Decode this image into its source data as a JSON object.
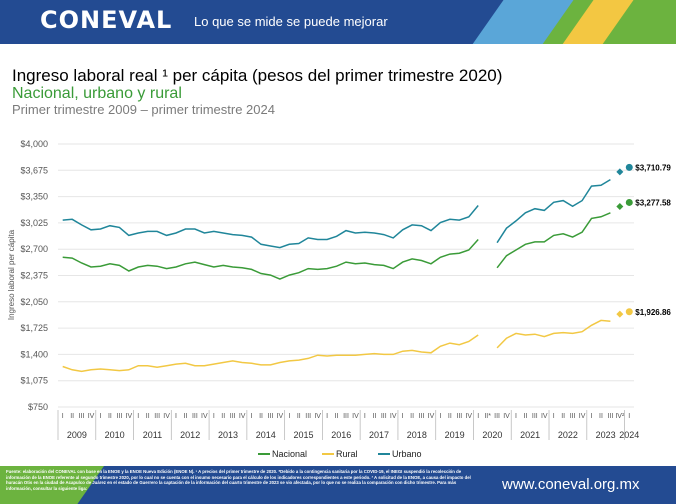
{
  "header": {
    "logo_text": "CONEVAL",
    "slogan": "Lo que se mide se puede mejorar"
  },
  "footer": {
    "source_note": "Fuente: elaboración del CONEVAL con base en la ENOE y la ENOE Nueva Edición (ENOE N). ¹ A precios del primer trimestre de 2020. *Debido a la contingencia sanitaria por la COVID-19, el INEGI suspendió la recolección de información de la ENOE referente al segundo trimestre 2020, por lo cual no se cuenta con el insumo necesario para el cálculo de los indicadores correspondientes a este periodo. ² A solicitud de la ENOE, a causa del impacto del huracán Otis en la ciudad de Acapulco de Juárez en el estado de Guerrero la captación de la información del cuarto trimestre de 2023 se vio afectada, por lo que no se realiza la comparación con dicho trimestre. Para más información, consultar la siguiente liga:",
    "website": "www.coneval.org.mx"
  },
  "colors": {
    "nacional": "#3a9b38",
    "rural": "#f2c844",
    "urbano": "#20869a",
    "header_blue": "#234b92",
    "accent_green": "#6cb33f"
  },
  "chart_data": {
    "type": "line",
    "title": "Ingreso laboral real ¹ per cápita (pesos del primer trimestre 2020)",
    "subtitle": "Nacional, urbano y rural",
    "period": "Primer trimestre 2009 – primer trimestre 2024",
    "ylabel": "Ingreso laboral per cápita",
    "ylim": [
      750,
      4000
    ],
    "yticks": [
      750,
      1075,
      1400,
      1725,
      2050,
      2375,
      2700,
      3025,
      3350,
      3675,
      4000
    ],
    "ytick_labels": [
      "$750",
      "$1,075",
      "$1,400",
      "$1,725",
      "$2,050",
      "$2,375",
      "$2,700",
      "$3,025",
      "$3,350",
      "$3,675",
      "$4,000"
    ],
    "quarter_labels": [
      "I",
      "II",
      "III",
      "IV",
      "I",
      "II",
      "III",
      "IV",
      "I",
      "II",
      "III",
      "IV",
      "I",
      "II",
      "III",
      "IV",
      "I",
      "II",
      "III",
      "IV",
      "I",
      "II",
      "III",
      "IV",
      "I",
      "II",
      "III",
      "IV",
      "I",
      "II",
      "III",
      "IV",
      "I",
      "II",
      "III",
      "IV",
      "I",
      "II",
      "III",
      "IV",
      "I",
      "II",
      "III",
      "IV",
      "I",
      "II*",
      "III",
      "IV",
      "I",
      "II",
      "III",
      "IV",
      "I",
      "II",
      "III",
      "IV",
      "I",
      "II",
      "III",
      "IV²",
      "I"
    ],
    "years": [
      "2009",
      "2010",
      "2011",
      "2012",
      "2013",
      "2014",
      "2015",
      "2016",
      "2017",
      "2018",
      "2019",
      "2020",
      "2021",
      "2022",
      "2023",
      "2024"
    ],
    "legend_position": "bottom",
    "grid": true,
    "series": [
      {
        "name": "Nacional",
        "values": [
          2600,
          2590,
          2530,
          2480,
          2490,
          2520,
          2500,
          2430,
          2480,
          2500,
          2490,
          2460,
          2480,
          2520,
          2540,
          2510,
          2480,
          2500,
          2480,
          2470,
          2450,
          2400,
          2380,
          2330,
          2380,
          2410,
          2460,
          2450,
          2460,
          2490,
          2540,
          2520,
          2530,
          2510,
          2500,
          2460,
          2540,
          2580,
          2560,
          2520,
          2600,
          2640,
          2650,
          2690,
          2820,
          null,
          2470,
          2620,
          2690,
          2760,
          2790,
          2790,
          2870,
          2890,
          2850,
          2910,
          3080,
          3100,
          3150,
          null,
          3277.58
        ],
        "end_label": "$3,277.58"
      },
      {
        "name": "Rural",
        "values": [
          1250,
          1210,
          1190,
          1210,
          1220,
          1210,
          1200,
          1210,
          1260,
          1260,
          1240,
          1260,
          1280,
          1290,
          1260,
          1260,
          1280,
          1300,
          1320,
          1300,
          1290,
          1270,
          1270,
          1300,
          1320,
          1330,
          1350,
          1390,
          1380,
          1390,
          1390,
          1390,
          1400,
          1410,
          1400,
          1400,
          1440,
          1450,
          1430,
          1420,
          1500,
          1540,
          1520,
          1560,
          1640,
          null,
          1480,
          1600,
          1660,
          1640,
          1650,
          1620,
          1660,
          1670,
          1660,
          1680,
          1760,
          1820,
          1810,
          null,
          1926.86
        ],
        "end_label": "$1,926.86"
      },
      {
        "name": "Urbano",
        "values": [
          3060,
          3070,
          3000,
          2940,
          2950,
          2990,
          2970,
          2870,
          2900,
          2920,
          2920,
          2870,
          2900,
          2950,
          2950,
          2900,
          2920,
          2900,
          2880,
          2870,
          2850,
          2760,
          2740,
          2720,
          2760,
          2770,
          2840,
          2820,
          2820,
          2860,
          2930,
          2900,
          2910,
          2900,
          2880,
          2840,
          2940,
          3000,
          2990,
          2930,
          3030,
          3070,
          3060,
          3100,
          3240,
          null,
          2780,
          2960,
          3050,
          3150,
          3200,
          3180,
          3280,
          3300,
          3230,
          3300,
          3480,
          3490,
          3560,
          null,
          3710.79
        ],
        "end_label": "$3,710.79"
      }
    ]
  }
}
